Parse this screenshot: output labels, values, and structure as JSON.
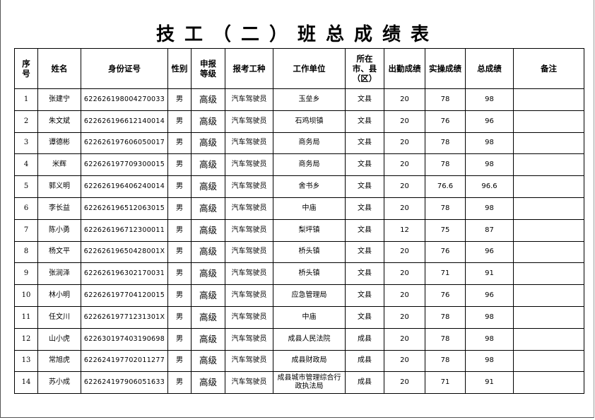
{
  "title": "技工（二）班总成绩表",
  "headers": [
    "序号",
    "姓名",
    "身份证号",
    "性别",
    "申报等级",
    "报考工种",
    "工作单位",
    "所在市、县（区）",
    "出勤成绩",
    "实操成绩",
    "总成绩",
    "备注"
  ],
  "rows": [
    [
      "1",
      "张建宁",
      "622626198004270033",
      "男",
      "高级",
      "汽车驾驶员",
      "玉垒乡",
      "文县",
      "20",
      "78",
      "98",
      ""
    ],
    [
      "2",
      "朱文斌",
      "622626196612140014",
      "男",
      "高级",
      "汽车驾驶员",
      "石鸡坝镇",
      "文县",
      "20",
      "76",
      "96",
      ""
    ],
    [
      "3",
      "谭德彬",
      "622626197606050017",
      "男",
      "高级",
      "汽车驾驶员",
      "商务局",
      "文县",
      "20",
      "78",
      "98",
      ""
    ],
    [
      "4",
      "米辉",
      "622626197709300015",
      "男",
      "高级",
      "汽车驾驶员",
      "商务局",
      "文县",
      "20",
      "78",
      "98",
      ""
    ],
    [
      "5",
      "郭义明",
      "622626196406240014",
      "男",
      "高级",
      "汽车驾驶员",
      "舍书乡",
      "文县",
      "20",
      "76.6",
      "96.6",
      ""
    ],
    [
      "6",
      "李长益",
      "622626196512063015",
      "男",
      "高级",
      "汽车驾驶员",
      "中庙",
      "文县",
      "20",
      "78",
      "98",
      ""
    ],
    [
      "7",
      "陈小勇",
      "622626196712300011",
      "男",
      "高级",
      "汽车驾驶员",
      "梨坪镇",
      "文县",
      "12",
      "75",
      "87",
      ""
    ],
    [
      "8",
      "杨文平",
      "62262619650428001X",
      "男",
      "高级",
      "汽车驾驶员",
      "桥头镇",
      "文县",
      "20",
      "76",
      "96",
      ""
    ],
    [
      "9",
      "张润泽",
      "622626196302170031",
      "男",
      "高级",
      "汽车驾驶员",
      "桥头镇",
      "文县",
      "20",
      "71",
      "91",
      ""
    ],
    [
      "10",
      "林小明",
      "622626197704120015",
      "男",
      "高级",
      "汽车驾驶员",
      "应急管理局",
      "文县",
      "20",
      "76",
      "96",
      ""
    ],
    [
      "11",
      "任文川",
      "62262619771231301X",
      "男",
      "高级",
      "汽车驾驶员",
      "中庙",
      "文县",
      "20",
      "78",
      "98",
      ""
    ],
    [
      "12",
      "山小虎",
      "622630197403190698",
      "男",
      "高级",
      "汽车驾驶员",
      "成县人民法院",
      "成县",
      "20",
      "78",
      "98",
      ""
    ],
    [
      "13",
      "常旭虎",
      "622624197702011277",
      "男",
      "高级",
      "汽车驾驶员",
      "成县财政局",
      "成县",
      "20",
      "78",
      "98",
      ""
    ],
    [
      "14",
      "苏小成",
      "622624197906051633",
      "男",
      "高级",
      "汽车驾驶员",
      "成县城市管理综合行政执法局",
      "成县",
      "20",
      "71",
      "91",
      ""
    ]
  ]
}
